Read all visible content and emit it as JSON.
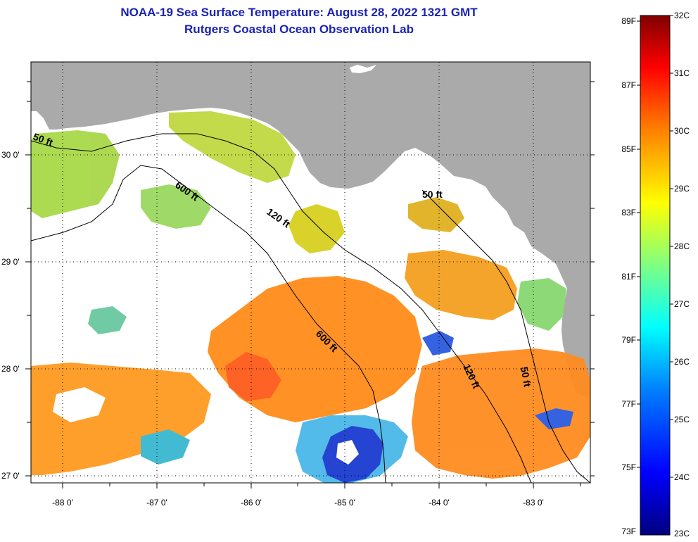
{
  "title": {
    "line1": "NOAA-19 Sea Surface Temperature:  August 28, 2022 1321 GMT",
    "line2": "Rutgers Coastal Ocean Observation Lab"
  },
  "axes": {
    "latitude_labels": [
      "30 0'",
      "29 0'",
      "28 0'",
      "27 0'"
    ],
    "longitude_labels": [
      "-88 0'",
      "-87 0'",
      "-86 0'",
      "-85 0'",
      "-84 0'",
      "-83 0'"
    ]
  },
  "contours": [
    "50 ft",
    "600 ft",
    "120 ft",
    "50 ft",
    "600 ft",
    "120 ft",
    "50 ft"
  ],
  "colorbar": {
    "fahrenheit": [
      "89F",
      "87F",
      "85F",
      "83F",
      "81F",
      "79F",
      "77F",
      "75F",
      "73F"
    ],
    "celsius": [
      "32C",
      "31C",
      "30C",
      "29C",
      "28C",
      "27C",
      "26C",
      "25C",
      "24C",
      "23C"
    ],
    "colors": [
      "#800000",
      "#ff0000",
      "#ff8000",
      "#ffff00",
      "#80ff80",
      "#00ffff",
      "#0080ff",
      "#0000ff",
      "#000080"
    ]
  },
  "colors": {
    "land": "#aaaaaa",
    "cloud": "#ffffff",
    "title": "#1a23b4"
  }
}
